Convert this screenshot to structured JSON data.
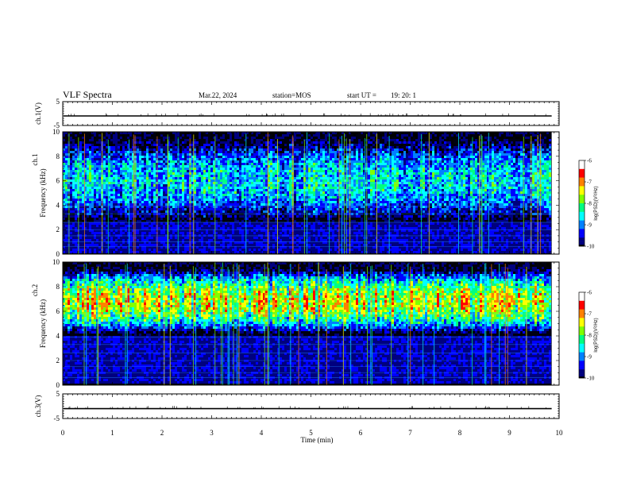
{
  "header": {
    "title": "VLF Spectra",
    "date": "Mar.22, 2024",
    "station": "station=MOS",
    "start": "start UT =",
    "start_time": "19: 20: 1"
  },
  "chart_data": [
    {
      "type": "line",
      "name": "ch1-voltage",
      "ylabel": "ch.1(V)",
      "ylim": [
        -5,
        5
      ],
      "yticks": [
        "5",
        "-5"
      ],
      "level": -1,
      "xlim": [
        0,
        10
      ]
    },
    {
      "type": "heatmap",
      "name": "ch1-spectrogram",
      "ylabel": "ch.1 Frequency (kHz)",
      "ylabel_top": "ch.1",
      "ylabel_bottom": "Frequency (kHz)",
      "ylim": [
        0,
        10
      ],
      "yticks": [
        "0",
        "2",
        "4",
        "6",
        "8",
        "10"
      ],
      "xlim": [
        0,
        10
      ],
      "data_end_min": 9.85,
      "band_low_khz": 2.5,
      "band_high_khz": 9.5,
      "colorbar": {
        "label": "log(PSD)(V²/Hz)",
        "range": [
          -10,
          -6
        ],
        "ticks": [
          "-6",
          "-7",
          "-8",
          "-9",
          "-10"
        ]
      }
    },
    {
      "type": "heatmap",
      "name": "ch2-spectrogram",
      "ylabel": "ch.2 Frequency (kHz)",
      "ylabel_top": "ch.2",
      "ylabel_bottom": "Frequency (kHz)",
      "ylim": [
        0,
        10
      ],
      "yticks": [
        "0",
        "2",
        "4",
        "6",
        "8",
        "10"
      ],
      "xlim": [
        0,
        10
      ],
      "data_end_min": 9.85,
      "band_low_khz": 4,
      "band_high_khz": 9.5,
      "colorbar": {
        "label": "log(PSD)(V²/Hz)",
        "range": [
          -10,
          -6
        ],
        "ticks": [
          "-6",
          "-7",
          "-8",
          "-9",
          "-10"
        ]
      }
    },
    {
      "type": "line",
      "name": "ch3-voltage",
      "ylabel": "ch.3(V)",
      "ylim": [
        -5,
        5
      ],
      "yticks": [
        "5",
        "-5"
      ],
      "level": -1,
      "xlim": [
        0,
        10
      ]
    }
  ],
  "xaxis": {
    "label": "Time (min)",
    "ticks": [
      "0",
      "1",
      "2",
      "3",
      "4",
      "5",
      "6",
      "7",
      "8",
      "9",
      "10"
    ]
  },
  "colors": {
    "colormap": [
      "#000000",
      "#00007f",
      "#0000ff",
      "#0080ff",
      "#00ffff",
      "#00ff80",
      "#80ff00",
      "#ffff00",
      "#ff8000",
      "#ff0000",
      "#ffffff"
    ]
  }
}
